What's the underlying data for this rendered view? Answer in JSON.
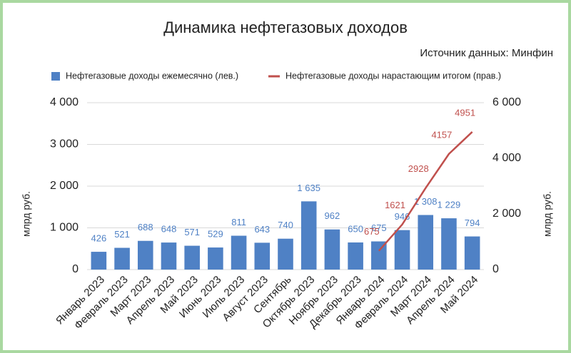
{
  "chart_data": {
    "type": "combo",
    "title": "Динамика нефтегазовых доходов",
    "subtitle": "Источник данных: Минфин",
    "categories": [
      "Январь 2023",
      "Февраль 2023",
      "Март 2023",
      "Апрель 2023",
      "Май 2023",
      "Июнь 2023",
      "Июль 2023",
      "Август 2023",
      "Сентябрь",
      "Октябрь 2023",
      "Ноябрь 2023",
      "Декабрь 2023",
      "Январь 2024",
      "Февраль 2024",
      "Март 2024",
      "Апрель 2024",
      "Май 2024"
    ],
    "series": [
      {
        "name": "Нефтегазовые доходы ежемесячно (лев.)",
        "type": "bar",
        "color": "#4f81c5",
        "values": [
          426,
          521,
          688,
          648,
          571,
          529,
          811,
          643,
          740,
          1635,
          962,
          650,
          675,
          946,
          1308,
          1229,
          794
        ],
        "value_labels": [
          "426",
          "521",
          "688",
          "648",
          "571",
          "529",
          "811",
          "643",
          "740",
          "1 635",
          "962",
          "650",
          "675",
          "946",
          "1 308",
          "1 229",
          "794"
        ]
      },
      {
        "name": "Нефтегазовые доходы нарастающим итогом (прав.)",
        "type": "line",
        "axis": "y2",
        "color": "#c0504d",
        "values": [
          null,
          null,
          null,
          null,
          null,
          null,
          null,
          null,
          null,
          null,
          null,
          null,
          675,
          1621,
          2928,
          4157,
          4951
        ]
      }
    ],
    "ylabel": "млрд руб.",
    "y2label": "млрд руб.",
    "ylim": [
      0,
      4000
    ],
    "yticks": [
      0,
      {
        "value": 1000,
        "label": "1 000"
      },
      {
        "value": 2000,
        "label": "2 000"
      },
      {
        "value": 3000,
        "label": "3 000"
      },
      {
        "value": 4000,
        "label": "4 000"
      }
    ],
    "y2lim": [
      0,
      6000
    ],
    "y2ticks": [
      0,
      {
        "value": 2000,
        "label": "2 000"
      },
      {
        "value": 4000,
        "label": "4 000"
      },
      {
        "value": 6000,
        "label": "6 000"
      }
    ],
    "grid": true
  }
}
